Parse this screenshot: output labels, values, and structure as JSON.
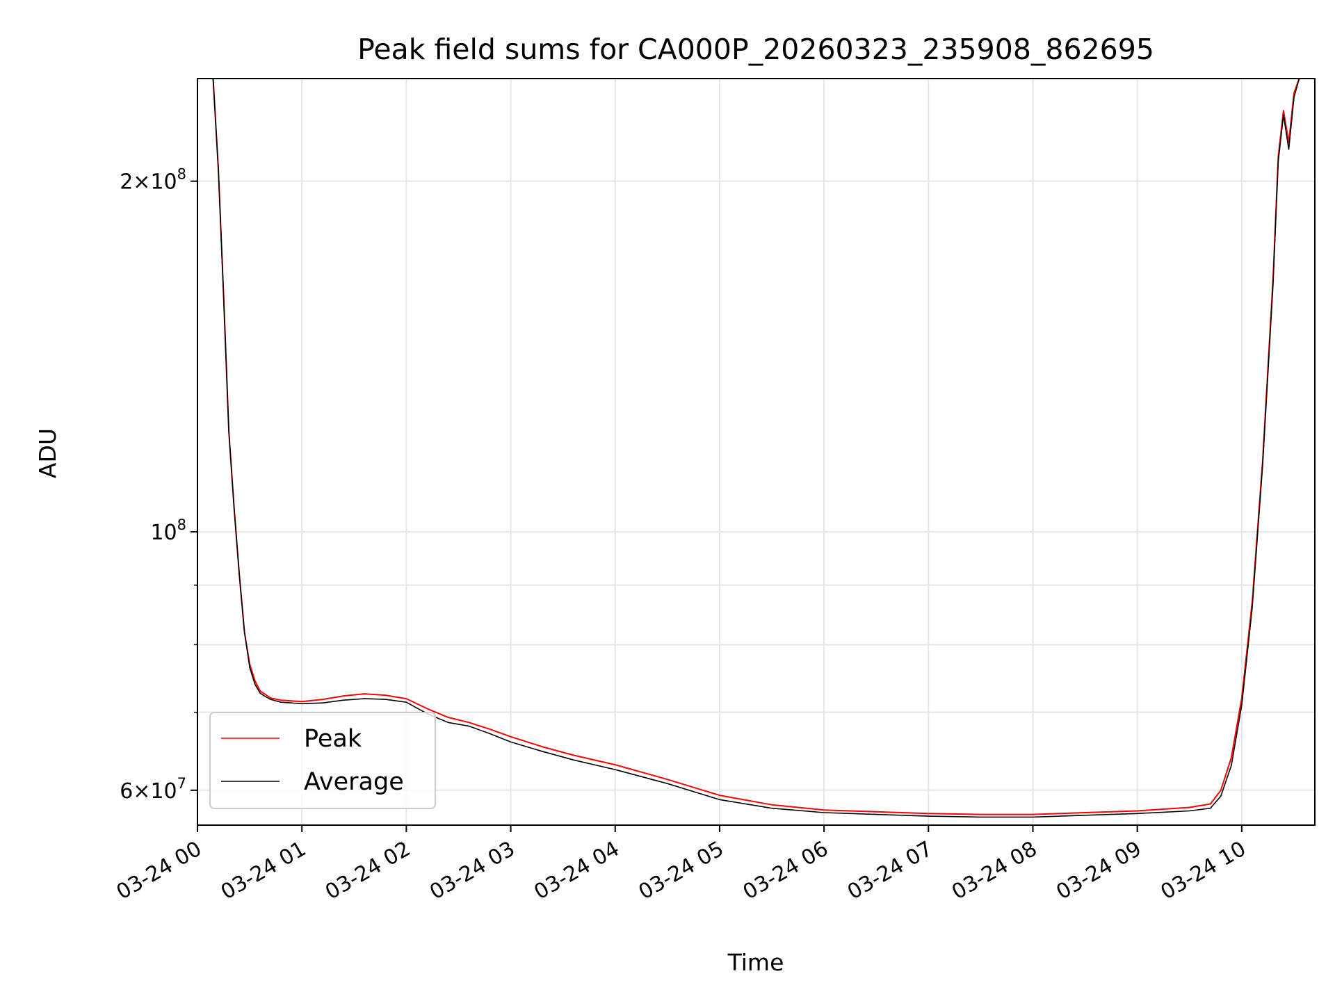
{
  "chart_data": {
    "type": "line",
    "title": "Peak field sums for CA000P_20260323_235908_862695",
    "xlabel": "Time",
    "ylabel": "ADU",
    "y_scale": "log",
    "x_tick_labels": [
      "03-24 00",
      "03-24 01",
      "03-24 02",
      "03-24 03",
      "03-24 04",
      "03-24 05",
      "03-24 06",
      "03-24 07",
      "03-24 08",
      "03-24 09",
      "03-24 10"
    ],
    "x_tick_hours": [
      0,
      1,
      2,
      3,
      4,
      5,
      6,
      7,
      8,
      9,
      10
    ],
    "xlim_hours": [
      0,
      10.7
    ],
    "ylim": [
      56000000,
      245000000
    ],
    "y_major_ticks": [
      {
        "value": 60000000,
        "base": "6",
        "exp": "7"
      },
      {
        "value": 100000000,
        "base": "",
        "exp": "8"
      },
      {
        "value": 200000000,
        "base": "2",
        "exp": "8"
      }
    ],
    "y_minor_gridlines": [
      70000000,
      80000000,
      90000000
    ],
    "grid": true,
    "legend_position": "lower-left",
    "series": [
      {
        "name": "Peak",
        "color": "#ff0000",
        "x_hours": [
          0.0,
          0.15,
          0.2,
          0.25,
          0.3,
          0.35,
          0.4,
          0.45,
          0.5,
          0.55,
          0.6,
          0.65,
          0.7,
          0.8,
          0.9,
          1.0,
          1.2,
          1.4,
          1.6,
          1.8,
          2.0,
          2.2,
          2.4,
          2.6,
          2.8,
          3.0,
          3.3,
          3.6,
          4.0,
          4.5,
          5.0,
          5.5,
          6.0,
          6.5,
          7.0,
          7.5,
          8.0,
          8.5,
          9.0,
          9.5,
          9.7,
          9.8,
          9.9,
          10.0,
          10.1,
          10.2,
          10.3,
          10.35,
          10.4,
          10.45,
          10.5,
          10.55,
          10.7
        ],
        "y": [
          245000000,
          245000000,
          205000000,
          160000000,
          122000000,
          105000000,
          92000000,
          82000000,
          77000000,
          74500000,
          73000000,
          72500000,
          72000000,
          71700000,
          71600000,
          71500000,
          71800000,
          72300000,
          72600000,
          72400000,
          71900000,
          70500000,
          69300000,
          68600000,
          67700000,
          66700000,
          65400000,
          64300000,
          63100000,
          61300000,
          59400000,
          58300000,
          57700000,
          57500000,
          57300000,
          57200000,
          57200000,
          57400000,
          57600000,
          58000000,
          58400000,
          60000000,
          64000000,
          72000000,
          87000000,
          115000000,
          165000000,
          210000000,
          230000000,
          216000000,
          238000000,
          245000000,
          245000000
        ]
      },
      {
        "name": "Average",
        "color": "#000000",
        "x_hours": [
          0.0,
          0.15,
          0.2,
          0.25,
          0.3,
          0.35,
          0.4,
          0.45,
          0.5,
          0.55,
          0.6,
          0.65,
          0.7,
          0.8,
          0.9,
          1.0,
          1.2,
          1.4,
          1.6,
          1.8,
          2.0,
          2.2,
          2.4,
          2.6,
          2.8,
          3.0,
          3.3,
          3.6,
          4.0,
          4.5,
          5.0,
          5.5,
          6.0,
          6.5,
          7.0,
          7.5,
          8.0,
          8.5,
          9.0,
          9.5,
          9.7,
          9.8,
          9.9,
          10.0,
          10.1,
          10.2,
          10.3,
          10.35,
          10.4,
          10.45,
          10.5,
          10.55,
          10.7
        ],
        "y": [
          245000000,
          245000000,
          205000000,
          160000000,
          122000000,
          105000000,
          92000000,
          82000000,
          76500000,
          74000000,
          72700000,
          72200000,
          71800000,
          71400000,
          71300000,
          71200000,
          71300000,
          71700000,
          71900000,
          71800000,
          71400000,
          69800000,
          68600000,
          68100000,
          67100000,
          66000000,
          64800000,
          63700000,
          62500000,
          60800000,
          58900000,
          57900000,
          57400000,
          57200000,
          57000000,
          56900000,
          56900000,
          57100000,
          57300000,
          57600000,
          57900000,
          59300000,
          63000000,
          71000000,
          86000000,
          114000000,
          163000000,
          208000000,
          228000000,
          213000000,
          236000000,
          245000000,
          245000000
        ]
      }
    ]
  }
}
